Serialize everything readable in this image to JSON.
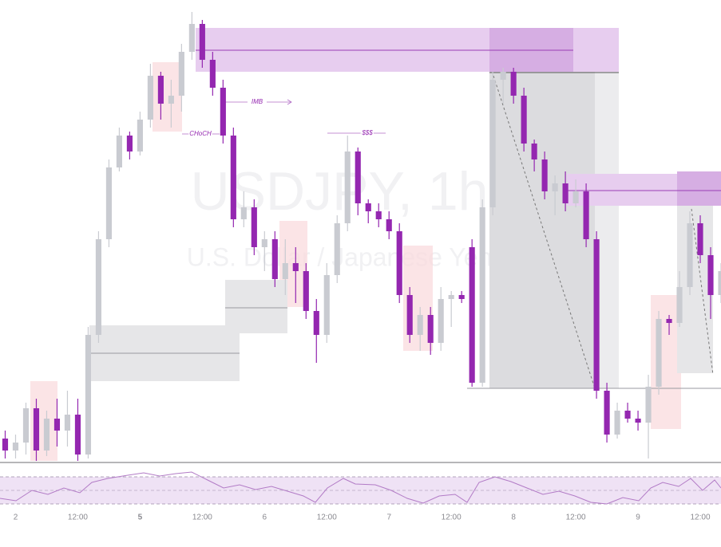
{
  "chart_data": {
    "type": "candlestick",
    "watermark": {
      "symbol": "USDJPY, 1h",
      "description": "U.S. Dollar / Japanese Yen"
    },
    "annotations": [
      "IMB",
      "CHoCH",
      "$$$"
    ],
    "up_color": "#c9cbd1",
    "down_color": "#9427b0",
    "x": [
      -2,
      0,
      2,
      4,
      6,
      8,
      10,
      12,
      14,
      16,
      18,
      20,
      22,
      24,
      26,
      28,
      30,
      32,
      34,
      36,
      38,
      40,
      42,
      44,
      46,
      48,
      50,
      52,
      54,
      56,
      58,
      60,
      62,
      64,
      66,
      68,
      70,
      72,
      74,
      76,
      78,
      80,
      82,
      84,
      86,
      88,
      90,
      92,
      94,
      96,
      98,
      100,
      102,
      104,
      106,
      108,
      110,
      112,
      114,
      116,
      118,
      120,
      122,
      124,
      126,
      128,
      130,
      132,
      134,
      136
    ],
    "open": [
      30,
      15,
      25,
      68,
      15,
      55,
      40,
      60,
      10,
      160,
      280,
      370,
      410,
      390,
      430,
      485,
      450,
      460,
      515,
      550,
      505,
      470,
      410,
      305,
      320,
      270,
      280,
      230,
      250,
      240,
      190,
      160,
      235,
      300,
      390,
      325,
      315,
      305,
      290,
      210,
      160,
      185,
      150,
      205,
      210,
      270,
      100,
      320,
      480,
      490,
      460,
      400,
      380,
      340,
      350,
      325,
      340,
      280,
      90,
      35,
      65,
      55,
      50,
      95,
      180,
      175,
      220,
      300,
      260,
      210
    ],
    "high": [
      40,
      35,
      75,
      80,
      65,
      80,
      90,
      80,
      170,
      290,
      380,
      420,
      415,
      440,
      500,
      490,
      480,
      525,
      565,
      555,
      515,
      480,
      420,
      340,
      330,
      290,
      290,
      280,
      270,
      250,
      205,
      250,
      310,
      410,
      395,
      330,
      325,
      315,
      300,
      220,
      195,
      195,
      220,
      215,
      215,
      280,
      330,
      490,
      495,
      495,
      470,
      405,
      390,
      360,
      365,
      355,
      350,
      290,
      100,
      75,
      75,
      65,
      110,
      190,
      185,
      240,
      315,
      310,
      270,
      250
    ],
    "low": [
      5,
      5,
      10,
      2,
      8,
      20,
      20,
      2,
      5,
      150,
      270,
      365,
      380,
      385,
      420,
      430,
      420,
      440,
      505,
      495,
      460,
      400,
      295,
      295,
      260,
      240,
      220,
      210,
      200,
      180,
      125,
      150,
      225,
      290,
      310,
      300,
      295,
      280,
      200,
      150,
      140,
      135,
      140,
      170,
      200,
      95,
      95,
      310,
      450,
      450,
      390,
      365,
      330,
      310,
      315,
      320,
      270,
      80,
      25,
      30,
      50,
      40,
      5,
      85,
      160,
      170,
      210,
      250,
      180,
      200
    ],
    "close": [
      15,
      25,
      68,
      15,
      55,
      40,
      60,
      10,
      160,
      280,
      370,
      410,
      390,
      430,
      485,
      450,
      460,
      515,
      550,
      505,
      470,
      410,
      305,
      320,
      270,
      280,
      230,
      250,
      240,
      190,
      160,
      235,
      300,
      390,
      325,
      315,
      305,
      290,
      210,
      160,
      185,
      150,
      205,
      210,
      205,
      100,
      320,
      480,
      490,
      460,
      400,
      380,
      340,
      350,
      325,
      340,
      280,
      90,
      35,
      65,
      55,
      50,
      95,
      180,
      175,
      220,
      300,
      260,
      210,
      240
    ],
    "xlim": [
      -3,
      136
    ],
    "ylim": [
      0,
      580
    ],
    "xticks": [
      {
        "value": 0,
        "label": "2"
      },
      {
        "value": 12,
        "label": "12:00"
      },
      {
        "value": 24,
        "label": "5"
      },
      {
        "value": 36,
        "label": "12:00"
      },
      {
        "value": 48,
        "label": "6"
      },
      {
        "value": 60,
        "label": "12:00"
      },
      {
        "value": 72,
        "label": "7"
      },
      {
        "value": 84,
        "label": "12:00"
      },
      {
        "value": 96,
        "label": "8"
      },
      {
        "value": 108,
        "label": "12:00"
      },
      {
        "value": 120,
        "label": "9"
      },
      {
        "value": 132,
        "label": "12:00"
      }
    ]
  }
}
